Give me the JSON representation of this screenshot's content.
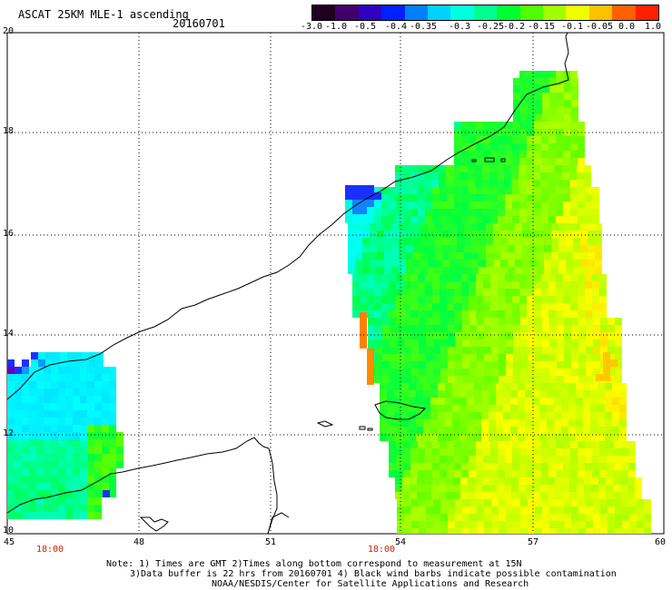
{
  "header": {
    "title": "ASCAT 25KM MLE-1 ascending",
    "date": "20160701"
  },
  "colorbar": {
    "labels": [
      "-3.0",
      "-1.0",
      "-0.5",
      "-0.4",
      "-0.35",
      "-0.3",
      "-0.25",
      "-0.2",
      "-0.15",
      "-0.1",
      "-0.05",
      "0.0",
      "1.0"
    ],
    "colors": [
      "#1a0020",
      "#3a0078",
      "#1e1ef0",
      "#0090ff",
      "#00d8ff",
      "#00ffd8",
      "#00ff90",
      "#20ff00",
      "#80ff00",
      "#d8ff00",
      "#ffd800",
      "#ff7000",
      "#ff2000"
    ]
  },
  "map": {
    "lat_labels": [
      "20",
      "18",
      "16",
      "14",
      "12",
      "10"
    ],
    "lon_labels": [
      "45",
      "48",
      "51",
      "54",
      "57",
      "60"
    ],
    "time_labels": [
      "18:00",
      "18:00"
    ],
    "colors": {
      "purple": "#6a00c0",
      "blue": "#1a30ff",
      "cyan": "#00ffff",
      "aqua": "#00ffc0",
      "green": "#00ff40",
      "lime": "#60ff00",
      "yellowgreen": "#b0ff00",
      "yellow": "#ffff00",
      "orange": "#ff8000",
      "coast": "#000000"
    }
  },
  "notes": {
    "line1": "Note: 1) Times are GMT 2)Times along bottom correspond to measurement at 15N",
    "line2": "3)Data buffer is 22 hrs from 20160701 4) Black wind barbs indicate possible contamination",
    "line3": "NOAA/NESDIS/Center for Satellite Applications and Research"
  }
}
